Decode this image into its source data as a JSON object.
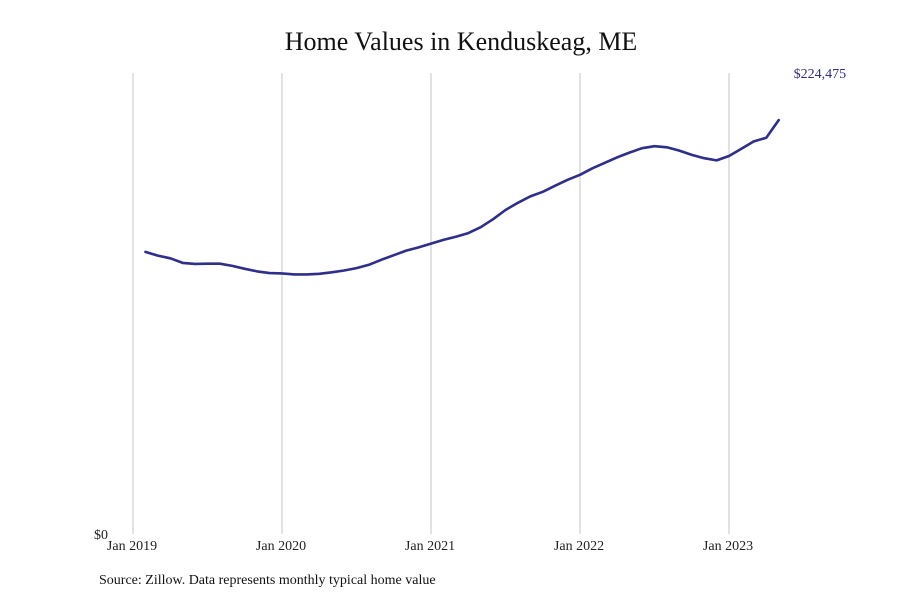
{
  "chart_data": {
    "type": "line",
    "title": "Home Values in Kenduskeag, ME",
    "xlabel": "",
    "ylabel": "",
    "x_ticks": [
      "Jan 2019",
      "Jan 2020",
      "Jan 2021",
      "Jan 2022",
      "Jan 2023"
    ],
    "y_ticks": [
      "$0"
    ],
    "ylim": [
      0,
      250000
    ],
    "grid": "vertical",
    "line_color": "#2e2e8b",
    "end_label": "$224,475",
    "series": [
      {
        "x": [
          "2019-02",
          "2019-03",
          "2019-04",
          "2019-05",
          "2019-06",
          "2019-07",
          "2019-08",
          "2019-09",
          "2019-10",
          "2019-11",
          "2019-12",
          "2020-01",
          "2020-02",
          "2020-03",
          "2020-04",
          "2020-05",
          "2020-06",
          "2020-07",
          "2020-08",
          "2020-09",
          "2020-10",
          "2020-11",
          "2020-12",
          "2021-01",
          "2021-02",
          "2021-03",
          "2021-04",
          "2021-05",
          "2021-06",
          "2021-07",
          "2021-08",
          "2021-09",
          "2021-10",
          "2021-11",
          "2021-12",
          "2022-01",
          "2022-02",
          "2022-03",
          "2022-04",
          "2022-05",
          "2022-06",
          "2022-07",
          "2022-08",
          "2022-09",
          "2022-10",
          "2022-11",
          "2022-12",
          "2023-01",
          "2023-02",
          "2023-03",
          "2023-04",
          "2023-05"
        ],
        "values": [
          153000,
          151000,
          149500,
          147000,
          146500,
          146600,
          146600,
          145400,
          143800,
          142400,
          141500,
          141300,
          140800,
          140800,
          141100,
          141900,
          142900,
          144200,
          146000,
          148700,
          151200,
          153700,
          155400,
          157500,
          159500,
          161200,
          163200,
          166400,
          170700,
          175700,
          179600,
          183100,
          185600,
          188900,
          192100,
          194800,
          198300,
          201300,
          204300,
          206900,
          209200,
          210300,
          209700,
          207900,
          205600,
          203800,
          202600,
          205000,
          208900,
          212900,
          214900,
          224475
        ]
      }
    ],
    "source": "Source: Zillow. Data represents monthly typical home value"
  }
}
